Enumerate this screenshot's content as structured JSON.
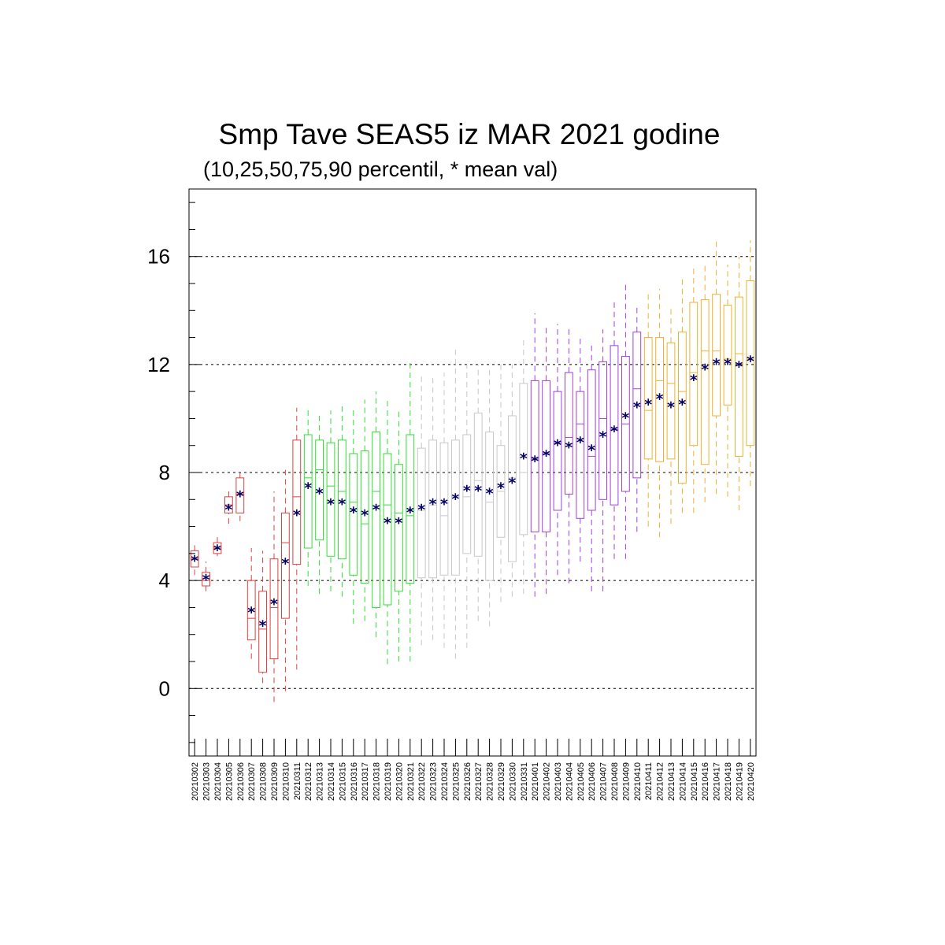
{
  "chart_data": {
    "type": "box",
    "title": "Smp Tave SEAS5 iz MAR 2021 godine",
    "subtitle": "(10,25,50,75,90 percentil, * mean val)",
    "xlabel": "",
    "ylabel": "",
    "ylim": [
      -2.5,
      18.5
    ],
    "yticks": [
      "0",
      "4",
      "8",
      "12",
      "16"
    ],
    "grid": "horizontal dashed at major ticks",
    "colors": {
      "red": "#e04040",
      "green": "#33dd33",
      "gray": "#c8c8c8",
      "purple": "#a040e0",
      "orange": "#f0b030",
      "mean_marker": "#000066",
      "grid": "#000000"
    },
    "mean_marker": "*",
    "categories": [
      "20210302",
      "20210303",
      "20210304",
      "20210305",
      "20210306",
      "20210307",
      "20210308",
      "20210309",
      "20210310",
      "20210311",
      "20210312",
      "20210313",
      "20210314",
      "20210315",
      "20210316",
      "20210317",
      "20210318",
      "20210319",
      "20210320",
      "20210321",
      "20210322",
      "20210323",
      "20210324",
      "20210325",
      "20210326",
      "20210327",
      "20210328",
      "20210329",
      "20210330",
      "20210331",
      "20210401",
      "20210402",
      "20210403",
      "20210404",
      "20210405",
      "20210406",
      "20210407",
      "20210408",
      "20210409",
      "20210410",
      "20210411",
      "20210412",
      "20210413",
      "20210414",
      "20210415",
      "20210416",
      "20210417",
      "20210418",
      "20210419",
      "20210420"
    ],
    "color_groups": [
      "red",
      "red",
      "red",
      "red",
      "red",
      "red",
      "red",
      "red",
      "red",
      "red",
      "green",
      "green",
      "green",
      "green",
      "green",
      "green",
      "green",
      "green",
      "green",
      "green",
      "gray",
      "gray",
      "gray",
      "gray",
      "gray",
      "gray",
      "gray",
      "gray",
      "gray",
      "gray",
      "purple",
      "purple",
      "purple",
      "purple",
      "purple",
      "purple",
      "purple",
      "purple",
      "purple",
      "purple",
      "orange",
      "orange",
      "orange",
      "orange",
      "orange",
      "orange",
      "orange",
      "orange",
      "orange",
      "orange"
    ],
    "p10": [
      4.2,
      3.6,
      4.9,
      6.1,
      6.2,
      1.1,
      0.2,
      -0.5,
      -0.1,
      0.7,
      3.8,
      3.5,
      3.6,
      3.4,
      2.4,
      2.5,
      1.9,
      0.9,
      1.0,
      1.0,
      1.6,
      1.8,
      1.5,
      1.1,
      1.5,
      2.5,
      2.3,
      3.2,
      3.4,
      3.5,
      3.4,
      3.5,
      4.2,
      3.9,
      4.7,
      3.6,
      3.6,
      4.8,
      4.8,
      5.8,
      6.0,
      5.6,
      6.1,
      6.5,
      6.5,
      6.9,
      7.2,
      7.1,
      6.6,
      7.5
    ],
    "p25": [
      4.5,
      3.8,
      5.0,
      6.5,
      6.5,
      1.8,
      0.6,
      1.1,
      2.6,
      4.6,
      5.2,
      5.5,
      4.9,
      4.8,
      4.2,
      3.9,
      3.0,
      3.1,
      3.6,
      3.9,
      4.1,
      4.1,
      4.2,
      4.2,
      5.0,
      4.9,
      4.0,
      5.6,
      4.7,
      5.7,
      5.8,
      5.8,
      6.6,
      7.2,
      6.3,
      6.6,
      7.0,
      6.8,
      7.3,
      7.8,
      8.5,
      8.4,
      8.5,
      7.6,
      9.0,
      8.3,
      10.1,
      10.5,
      8.6,
      9.0
    ],
    "p50": [
      4.8,
      4.0,
      5.2,
      6.8,
      7.2,
      2.6,
      2.2,
      3.0,
      5.4,
      7.1,
      7.8,
      8.1,
      7.5,
      7.3,
      6.9,
      6.1,
      7.3,
      6.8,
      6.5,
      6.4,
      6.6,
      6.8,
      6.4,
      7.1,
      7.1,
      7.7,
      6.9,
      7.3,
      7.8,
      8.0,
      8.5,
      8.7,
      9.1,
      9.3,
      9.8,
      8.6,
      10.0,
      9.6,
      9.8,
      11.1,
      10.3,
      11.4,
      11.3,
      11.0,
      11.7,
      12.5,
      12.5,
      12.2,
      12.4,
      12.2
    ],
    "p75": [
      5.1,
      4.3,
      5.4,
      7.1,
      7.8,
      4.0,
      3.6,
      4.8,
      6.5,
      9.2,
      9.4,
      9.2,
      9.1,
      9.2,
      8.7,
      8.8,
      9.5,
      8.7,
      8.3,
      9.4,
      8.9,
      9.2,
      9.1,
      9.2,
      9.4,
      10.2,
      9.5,
      9.0,
      10.1,
      11.3,
      11.4,
      11.4,
      11.0,
      11.7,
      11.0,
      11.8,
      12.1,
      12.7,
      12.3,
      13.2,
      13.0,
      13.0,
      12.8,
      13.2,
      14.3,
      14.4,
      14.6,
      14.2,
      14.5,
      15.1
    ],
    "p90": [
      5.4,
      4.7,
      5.7,
      7.3,
      8.1,
      5.2,
      5.1,
      7.3,
      8.1,
      10.4,
      10.4,
      10.1,
      10.3,
      10.6,
      10.4,
      10.7,
      11.0,
      10.8,
      10.3,
      12.2,
      11.6,
      11.6,
      11.7,
      12.7,
      12.0,
      12.0,
      11.8,
      12.1,
      12.0,
      12.9,
      13.9,
      13.4,
      13.5,
      13.4,
      13.0,
      12.7,
      13.3,
      14.4,
      15.1,
      14.1,
      14.6,
      14.8,
      14.1,
      15.3,
      15.7,
      15.8,
      16.6,
      15.7,
      16.0,
      16.6
    ],
    "mean": [
      4.8,
      4.1,
      5.2,
      6.7,
      7.2,
      2.9,
      2.4,
      3.2,
      4.7,
      6.5,
      7.5,
      7.3,
      6.9,
      6.9,
      6.6,
      6.5,
      6.7,
      6.2,
      6.2,
      6.6,
      6.7,
      6.9,
      6.9,
      7.1,
      7.4,
      7.4,
      7.3,
      7.5,
      7.7,
      8.6,
      8.5,
      8.7,
      9.1,
      9.0,
      9.2,
      8.9,
      9.4,
      9.6,
      10.1,
      10.5,
      10.6,
      10.8,
      10.5,
      10.6,
      11.5,
      11.9,
      12.1,
      12.1,
      12.0,
      12.2
    ]
  }
}
